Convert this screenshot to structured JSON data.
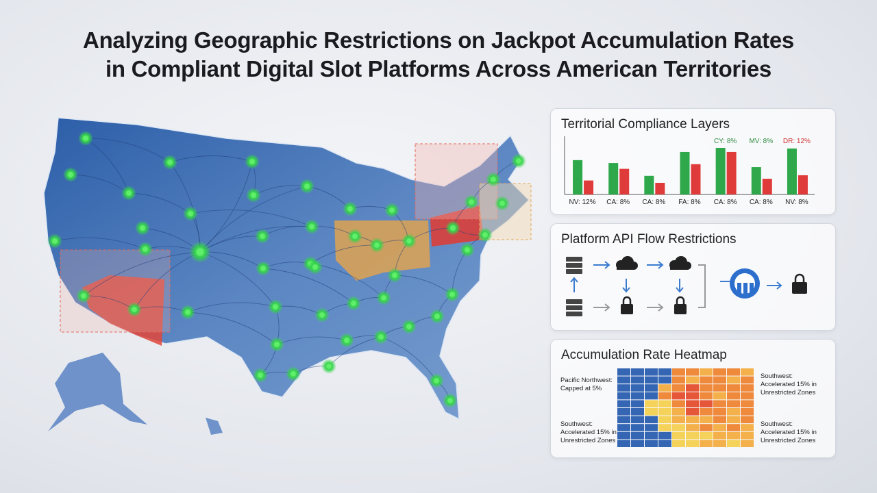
{
  "title": [
    "Analyzing Geographic Restrictions on Jackpot Accumulation Rates",
    "in Compliant Digital Slot Platforms Across American Territories"
  ],
  "chart_data": {
    "type": "bar",
    "title": "Territorial Compliance Layers",
    "categories": [
      "NV: 12%",
      "CA: 8%",
      "CA: 8%",
      "FA: 8%",
      "CA: 8%",
      "CA: 8%",
      "NV: 8%"
    ],
    "series": [
      {
        "color": "#2ea84a",
        "values": [
          59,
          54,
          32,
          73,
          80,
          47,
          79
        ]
      },
      {
        "color": "#e03b3b",
        "values": [
          24,
          44,
          20,
          52,
          73,
          27,
          33
        ]
      }
    ],
    "ylim": [
      0,
      100
    ],
    "annotations": [
      {
        "text": "CY: 8%",
        "category": 4,
        "color": "#2e8a3e"
      },
      {
        "text": "MV: 8%",
        "category": 5,
        "color": "#2e8a3e"
      },
      {
        "text": "DR: 12%",
        "category": 6,
        "color": "#d0302f"
      }
    ]
  },
  "api_panel": {
    "title": "Platform API Flow Restrictions"
  },
  "heatmap": {
    "title": "Accumulation Rate Heatmap",
    "colors": [
      "#3566b3",
      "#f5d25a",
      "#f4b04a",
      "#ef8a3c",
      "#e6573a"
    ],
    "values": [
      [
        0,
        0,
        0,
        0,
        3,
        3,
        2,
        3,
        3,
        2
      ],
      [
        0,
        0,
        0,
        0,
        3,
        2,
        3,
        3,
        2,
        3
      ],
      [
        0,
        0,
        0,
        2,
        3,
        4,
        3,
        3,
        3,
        3
      ],
      [
        0,
        0,
        0,
        3,
        4,
        4,
        3,
        2,
        3,
        3
      ],
      [
        0,
        0,
        1,
        1,
        3,
        4,
        4,
        3,
        3,
        3
      ],
      [
        0,
        0,
        1,
        1,
        2,
        4,
        3,
        3,
        2,
        3
      ],
      [
        0,
        0,
        0,
        1,
        2,
        2,
        2,
        3,
        2,
        3
      ],
      [
        0,
        0,
        0,
        1,
        1,
        2,
        3,
        2,
        3,
        2
      ],
      [
        0,
        0,
        0,
        0,
        1,
        1,
        1,
        2,
        2,
        2
      ],
      [
        0,
        0,
        0,
        0,
        1,
        1,
        2,
        2,
        1,
        2
      ]
    ],
    "labels": {
      "left": [
        [
          "Pacific Northwest:",
          "Capped at 5%"
        ],
        [
          "Southwest:",
          "Accelerated 15% in",
          "Unrestricted Zones"
        ]
      ],
      "right": [
        [
          "Southwest:",
          "Accelerated 15% in",
          "Unrestricted Zones"
        ],
        [
          "Southwest:",
          "Accelerated 15% in",
          "Unrestricted Zones"
        ]
      ]
    }
  }
}
